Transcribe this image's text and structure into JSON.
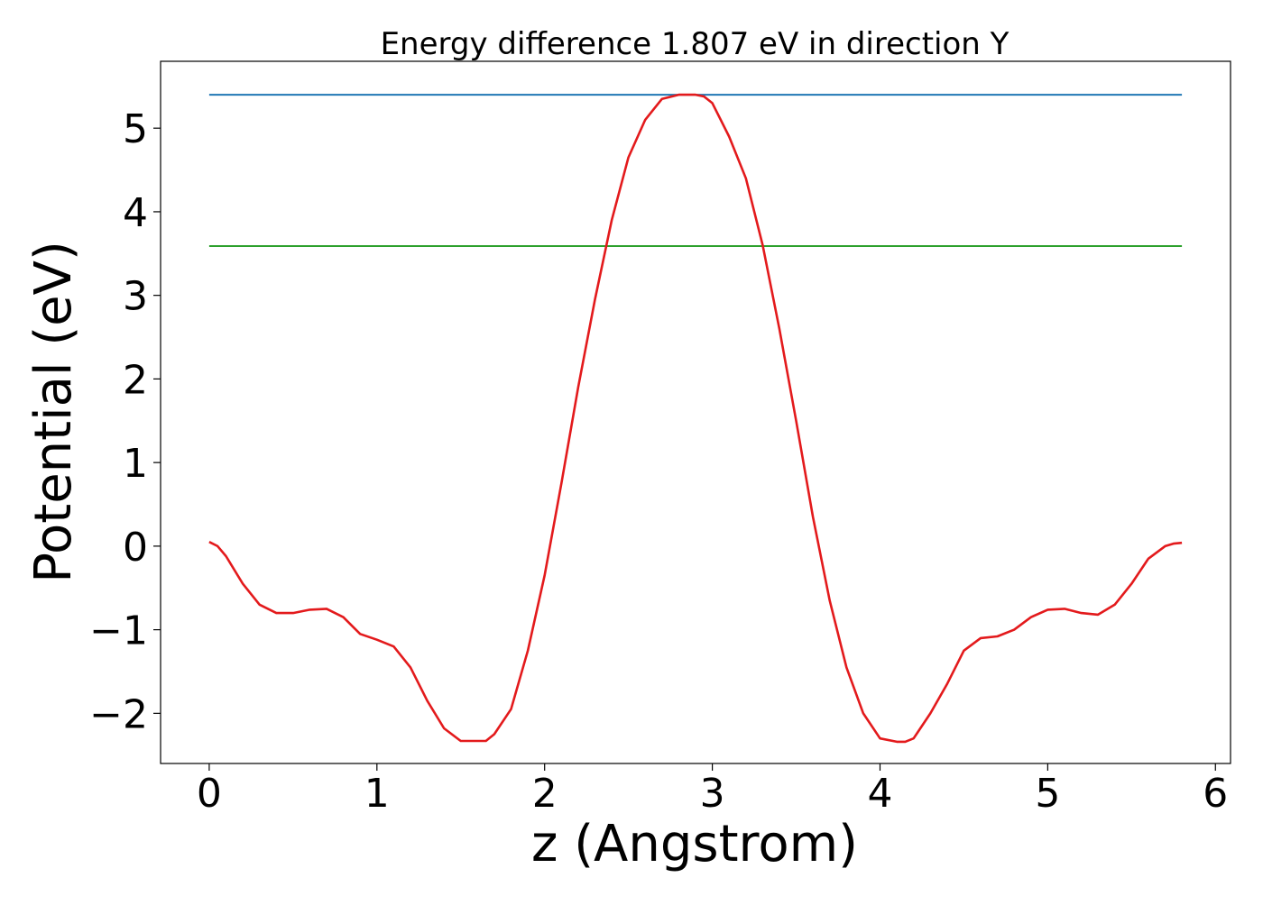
{
  "chart_data": {
    "type": "line",
    "title": "Energy difference 1.807 eV in direction Y",
    "xlabel": "z (Angstrom)",
    "ylabel": "Potential (eV)",
    "xlim": [
      -0.29,
      6.09
    ],
    "ylim": [
      -2.6,
      5.8
    ],
    "x_ticks": [
      0,
      1,
      2,
      3,
      4,
      5,
      6
    ],
    "y_ticks": [
      -2,
      -1,
      0,
      1,
      2,
      3,
      4,
      5
    ],
    "x_tick_labels": [
      "0",
      "1",
      "2",
      "3",
      "4",
      "5",
      "6"
    ],
    "y_tick_labels": [
      "−2",
      "−1",
      "0",
      "1",
      "2",
      "3",
      "4",
      "5"
    ],
    "grid": false,
    "series": [
      {
        "color": "#1f77b4",
        "x": [
          0,
          5.8
        ],
        "y": [
          5.4,
          5.4
        ]
      },
      {
        "color": "#2ca02c",
        "x": [
          0,
          5.8
        ],
        "y": [
          3.59,
          3.59
        ]
      },
      {
        "color": "#e31a1c",
        "x": [
          0.0,
          0.05,
          0.1,
          0.2,
          0.3,
          0.4,
          0.5,
          0.6,
          0.7,
          0.8,
          0.9,
          1.0,
          1.1,
          1.2,
          1.3,
          1.4,
          1.5,
          1.6,
          1.65,
          1.7,
          1.8,
          1.9,
          2.0,
          2.1,
          2.2,
          2.3,
          2.4,
          2.5,
          2.6,
          2.7,
          2.8,
          2.9,
          2.95,
          3.0,
          3.1,
          3.2,
          3.3,
          3.4,
          3.5,
          3.6,
          3.7,
          3.8,
          3.9,
          4.0,
          4.1,
          4.15,
          4.2,
          4.3,
          4.4,
          4.5,
          4.6,
          4.7,
          4.8,
          4.9,
          5.0,
          5.1,
          5.2,
          5.3,
          5.4,
          5.5,
          5.6,
          5.7,
          5.75,
          5.8
        ],
        "y": [
          0.05,
          0.0,
          -0.12,
          -0.45,
          -0.7,
          -0.8,
          -0.8,
          -0.76,
          -0.75,
          -0.85,
          -1.05,
          -1.12,
          -1.2,
          -1.45,
          -1.85,
          -2.18,
          -2.33,
          -2.33,
          -2.33,
          -2.25,
          -1.95,
          -1.25,
          -0.35,
          0.75,
          1.9,
          2.95,
          3.9,
          4.65,
          5.1,
          5.35,
          5.4,
          5.4,
          5.38,
          5.3,
          4.9,
          4.4,
          3.6,
          2.6,
          1.5,
          0.35,
          -0.65,
          -1.45,
          -2.0,
          -2.3,
          -2.34,
          -2.34,
          -2.3,
          -2.0,
          -1.65,
          -1.25,
          -1.1,
          -1.08,
          -1.0,
          -0.85,
          -0.76,
          -0.75,
          -0.8,
          -0.82,
          -0.7,
          -0.45,
          -0.15,
          0.0,
          0.03,
          0.04
        ]
      }
    ]
  }
}
